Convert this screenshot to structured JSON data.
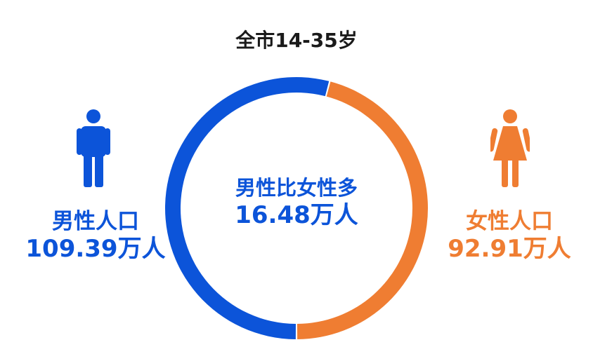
{
  "title": "全市14-35岁",
  "center": {
    "line1": "男性比女性多",
    "line2": "16.48万人"
  },
  "male": {
    "label": "男性人口",
    "value_text": "109.39万人",
    "icon": "male-person-icon"
  },
  "female": {
    "label": "女性人口",
    "value_text": "92.91万人",
    "icon": "female-person-icon"
  },
  "colors": {
    "male": "#0c54d9",
    "female": "#ef7d32",
    "title": "#1a1a1a"
  },
  "chart_data": {
    "type": "pie",
    "categories": [
      "男性人口",
      "女性人口"
    ],
    "values": [
      109.39,
      92.91
    ],
    "unit": "万人",
    "title": "全市14-35岁",
    "donut": true
  }
}
